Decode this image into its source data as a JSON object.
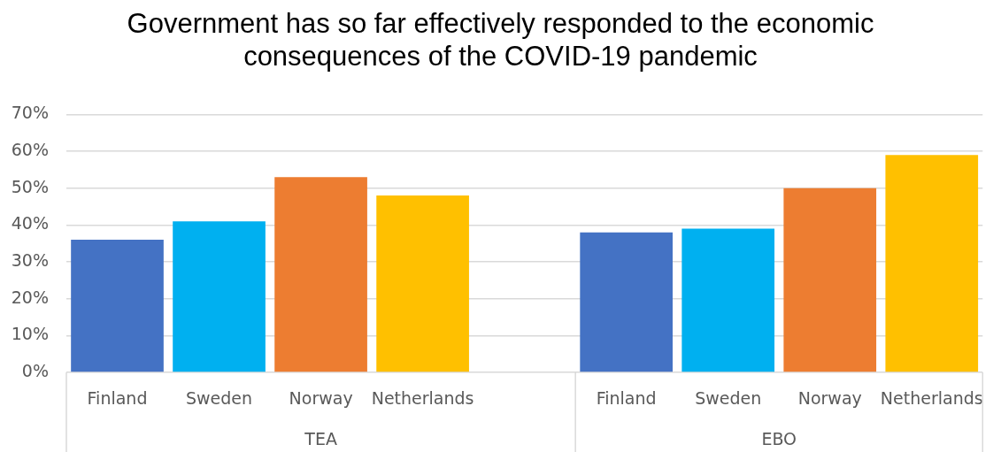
{
  "chart_data": {
    "type": "bar",
    "title": "Government has so far effectively responded to the economic consequences of the COVID-19 pandemic",
    "categories": [
      "Finland",
      "Sweden",
      "Norway",
      "Netherlands",
      null,
      "Finland",
      "Sweden",
      "Norway",
      "Netherlands"
    ],
    "values": [
      36,
      41,
      53,
      48,
      null,
      38,
      39,
      50,
      59
    ],
    "colors": [
      "#4472c4",
      "#00b0f0",
      "#ed7d31",
      "#ffc000",
      "#ffffff",
      "#4472c4",
      "#00b0f0",
      "#ed7d31",
      "#ffc000"
    ],
    "annotations": [
      "TEA",
      "EBO"
    ],
    "ylim": [
      0,
      70
    ],
    "yticks": [
      {
        "value": 0,
        "label": "0%"
      },
      {
        "value": 10,
        "label": "10%"
      },
      {
        "value": 20,
        "label": "20%"
      },
      {
        "value": 30,
        "label": "30%"
      },
      {
        "value": 40,
        "label": "40%"
      },
      {
        "value": 50,
        "label": "50%"
      },
      {
        "value": 60,
        "label": "60%"
      },
      {
        "value": 70,
        "label": "70%"
      }
    ],
    "grid": "y",
    "legend": false
  }
}
